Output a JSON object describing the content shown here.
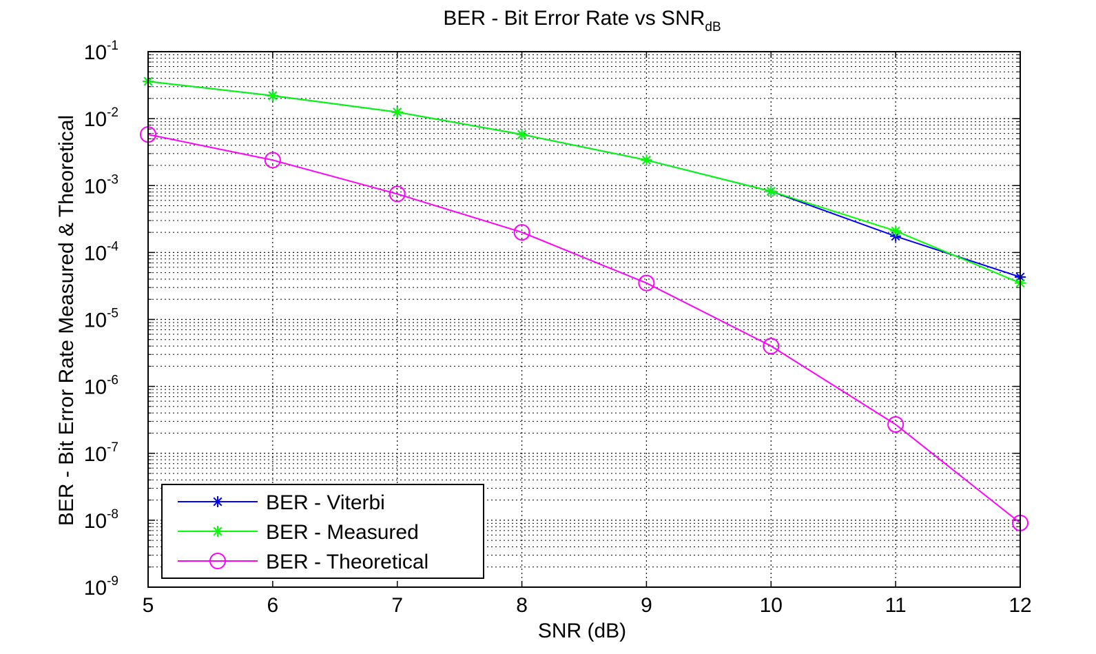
{
  "chart_data": {
    "type": "line",
    "title": "BER - Bit Error Rate vs SNR",
    "title_subscript": "dB",
    "xlabel": "SNR (dB)",
    "ylabel": "BER - Bit Error Rate Measured & Theoretical",
    "xlim": [
      5,
      12
    ],
    "ylim": [
      1e-09,
      0.1
    ],
    "yscale": "log",
    "grid": true,
    "legend_position": "bottom-left",
    "x": [
      5,
      6,
      7,
      8,
      9,
      10,
      11,
      12
    ],
    "x_ticks": [
      "5",
      "6",
      "7",
      "8",
      "9",
      "10",
      "11",
      "12"
    ],
    "y_ticks": [
      {
        "base": "10",
        "exp": "-1"
      },
      {
        "base": "10",
        "exp": "-2"
      },
      {
        "base": "10",
        "exp": "-3"
      },
      {
        "base": "10",
        "exp": "-4"
      },
      {
        "base": "10",
        "exp": "-5"
      },
      {
        "base": "10",
        "exp": "-6"
      },
      {
        "base": "10",
        "exp": "-7"
      },
      {
        "base": "10",
        "exp": "-8"
      },
      {
        "base": "10",
        "exp": "-9"
      }
    ],
    "series": [
      {
        "name": "BER - Viterbi",
        "color": "#0000ff",
        "marker": "asterisk",
        "values": [
          0.036,
          0.022,
          0.0125,
          0.0058,
          0.0024,
          0.00082,
          0.000175,
          4.3e-05
        ]
      },
      {
        "name": "BER - Measured",
        "color": "#00ff00",
        "marker": "asterisk",
        "values": [
          0.036,
          0.022,
          0.0125,
          0.0058,
          0.0024,
          0.00082,
          0.00021,
          3.5e-05
        ]
      },
      {
        "name": "BER - Theoretical",
        "color": "#ff00ff",
        "marker": "circle",
        "values": [
          0.0058,
          0.0024,
          0.00075,
          0.0002,
          3.5e-05,
          4e-06,
          2.7e-07,
          9.1e-09
        ]
      }
    ]
  }
}
